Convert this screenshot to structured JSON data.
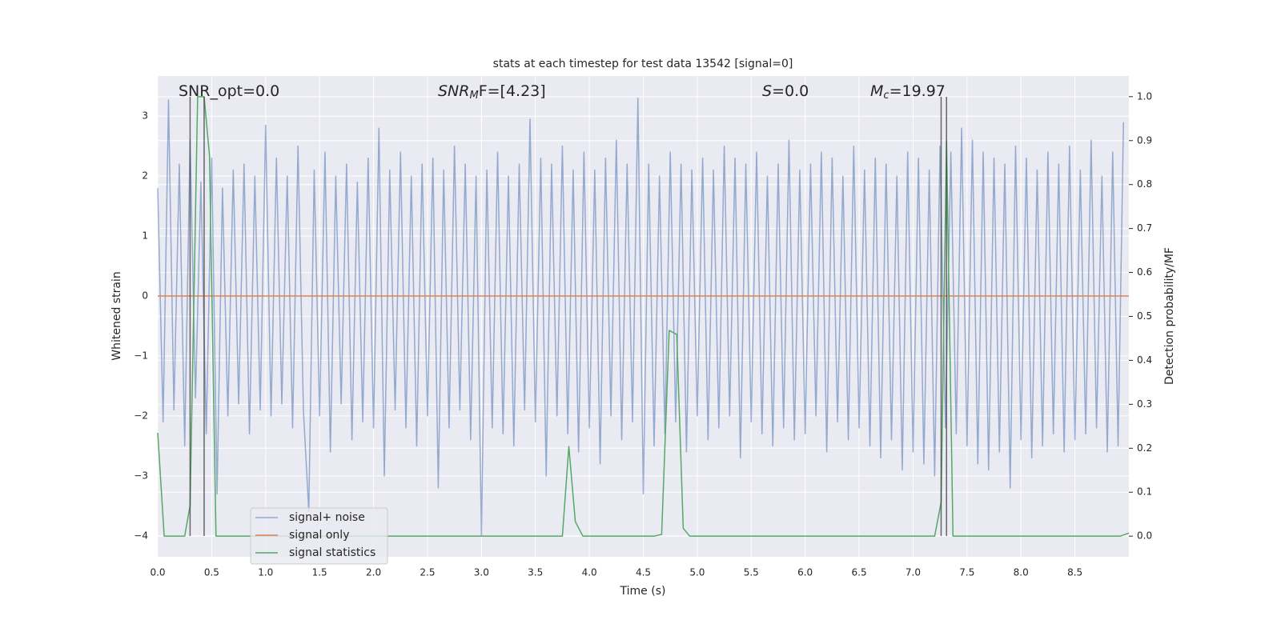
{
  "chart_data": {
    "type": "line",
    "title": "stats at each timestep for test data 13542 [signal=0]",
    "xlabel": "Time (s)",
    "ylabel": "Whitened strain",
    "y2label": "Detection probability/MF",
    "xlim": [
      0,
      9.0
    ],
    "ylim": [
      -4.35,
      3.67
    ],
    "y2lim": [
      -0.047,
      1.047
    ],
    "xticks": [
      {
        "value": 0,
        "label": "0.0"
      },
      0.5,
      {
        "value": 1,
        "label": "1.0"
      },
      1.5,
      {
        "value": 2,
        "label": "2.0"
      },
      2.5,
      {
        "value": 3,
        "label": "3.0"
      },
      3.5,
      {
        "value": 4,
        "label": "4.0"
      },
      4.5,
      {
        "value": 5,
        "label": "5.0"
      },
      5.5,
      {
        "value": 6,
        "label": "6.0"
      },
      6.5,
      {
        "value": 7,
        "label": "7.0"
      },
      7.5,
      {
        "value": 8,
        "label": "8.0"
      },
      8.5
    ],
    "yticks": [
      {
        "value": -4,
        "label": "−4"
      },
      {
        "value": -3,
        "label": "−3"
      },
      {
        "value": -2,
        "label": "−2"
      },
      {
        "value": -1,
        "label": "−1"
      },
      0,
      1,
      2,
      3
    ],
    "y2ticks": [
      {
        "value": 0,
        "label": "0.0"
      },
      0.1,
      0.2,
      0.3,
      0.4,
      0.5,
      0.6,
      0.7,
      0.8,
      0.9,
      {
        "value": 1,
        "label": "1.0"
      }
    ],
    "grid": true,
    "legend": "lower left",
    "annotations": [
      {
        "base": "SNR_opt=0.0"
      },
      {
        "base": "SNR",
        "sub": "M",
        "after": "F=[4.23]"
      },
      {
        "base": "S",
        "after": "=0.0"
      },
      {
        "base": "M",
        "sub": "c",
        "after": "=19.97"
      }
    ],
    "vlines": [
      0.3,
      0.43,
      7.26,
      7.31
    ],
    "series": [
      {
        "name": "signal+ noise",
        "color": "#4c72b0",
        "x": [
          0,
          0.05,
          0.1,
          0.15,
          0.2,
          0.25,
          0.3,
          0.35,
          0.4,
          0.45,
          0.5,
          0.55,
          0.6,
          0.65,
          0.7,
          0.75,
          0.8,
          0.85,
          0.9,
          0.95,
          1,
          1.05,
          1.1,
          1.15,
          1.2,
          1.25,
          1.3,
          1.35,
          1.4,
          1.45,
          1.5,
          1.55,
          1.6,
          1.65,
          1.7,
          1.75,
          1.8,
          1.85,
          1.9,
          1.95,
          2,
          2.05,
          2.1,
          2.15,
          2.2,
          2.25,
          2.3,
          2.35,
          2.4,
          2.45,
          2.5,
          2.55,
          2.6,
          2.65,
          2.7,
          2.75,
          2.8,
          2.85,
          2.9,
          2.95,
          3,
          3.05,
          3.1,
          3.15,
          3.2,
          3.25,
          3.3,
          3.35,
          3.4,
          3.45,
          3.5,
          3.55,
          3.6,
          3.65,
          3.7,
          3.75,
          3.8,
          3.85,
          3.9,
          3.95,
          4,
          4.05,
          4.1,
          4.15,
          4.2,
          4.25,
          4.3,
          4.35,
          4.4,
          4.45,
          4.5,
          4.55,
          4.6,
          4.65,
          4.7,
          4.75,
          4.8,
          4.85,
          4.9,
          4.95,
          5,
          5.05,
          5.1,
          5.15,
          5.2,
          5.25,
          5.3,
          5.35,
          5.4,
          5.45,
          5.5,
          5.55,
          5.6,
          5.65,
          5.7,
          5.75,
          5.8,
          5.85,
          5.9,
          5.95,
          6,
          6.05,
          6.1,
          6.15,
          6.2,
          6.25,
          6.3,
          6.35,
          6.4,
          6.45,
          6.5,
          6.55,
          6.6,
          6.65,
          6.7,
          6.75,
          6.8,
          6.85,
          6.9,
          6.95,
          7,
          7.05,
          7.1,
          7.15,
          7.2,
          7.25,
          7.3,
          7.35,
          7.4,
          7.45,
          7.5,
          7.55,
          7.6,
          7.65,
          7.7,
          7.75,
          7.8,
          7.85,
          7.9,
          7.95,
          8,
          8.05,
          8.1,
          8.15,
          8.2,
          8.25,
          8.3,
          8.35,
          8.4,
          8.45,
          8.5,
          8.55,
          8.6,
          8.65,
          8.7,
          8.75,
          8.8,
          8.85,
          8.9,
          8.95
        ],
        "values": [
          1.8,
          -2.1,
          3.27,
          -1.9,
          2.2,
          -2.5,
          2.6,
          -1.7,
          1.9,
          -2.3,
          2.3,
          -3.3,
          1.8,
          -2.0,
          2.1,
          -1.8,
          2.2,
          -2.3,
          2.0,
          -1.9,
          2.85,
          -2.0,
          2.3,
          -1.8,
          2.0,
          -2.2,
          2.5,
          -1.9,
          -3.6,
          2.1,
          -2.0,
          2.4,
          -2.6,
          2.0,
          -1.8,
          2.2,
          -2.4,
          1.9,
          -2.1,
          2.3,
          -2.2,
          2.8,
          -3.0,
          2.1,
          -1.9,
          2.4,
          -2.2,
          2.0,
          -2.5,
          2.2,
          -2.0,
          2.3,
          -3.2,
          2.1,
          -2.2,
          2.5,
          -1.9,
          2.2,
          -2.4,
          2.0,
          -4.0,
          2.1,
          -2.2,
          2.4,
          -2.3,
          2.0,
          -2.5,
          2.2,
          -1.9,
          2.95,
          -2.1,
          2.3,
          -3.0,
          2.2,
          -2.0,
          2.5,
          -2.3,
          2.1,
          -2.6,
          2.4,
          -2.2,
          2.1,
          -2.8,
          2.3,
          -2.0,
          2.6,
          -2.4,
          2.2,
          -2.1,
          3.3,
          -3.3,
          2.2,
          -2.5,
          2.0,
          -2.3,
          2.4,
          -2.1,
          2.2,
          -2.6,
          2.1,
          -2.0,
          2.3,
          -2.4,
          2.1,
          -2.2,
          2.5,
          -2.0,
          2.3,
          -2.7,
          2.2,
          -2.1,
          2.4,
          -2.3,
          2.0,
          -2.5,
          2.2,
          -2.2,
          2.6,
          -2.4,
          2.1,
          -2.3,
          2.2,
          -2.0,
          2.4,
          -2.6,
          2.3,
          -2.1,
          2.0,
          -2.4,
          2.5,
          -2.2,
          2.1,
          -2.5,
          2.3,
          -2.7,
          2.2,
          -2.4,
          2.0,
          -2.9,
          2.4,
          -2.6,
          2.3,
          -2.8,
          2.1,
          -3.0,
          2.5,
          -2.2,
          2.4,
          -2.3,
          2.8,
          -2.5,
          2.6,
          -2.8,
          2.4,
          -2.9,
          2.3,
          -2.6,
          2.2,
          -3.2,
          2.5,
          -2.4,
          2.3,
          -2.7,
          2.1,
          -2.5,
          2.4,
          -2.3,
          2.2,
          -2.6,
          2.5,
          -2.4,
          2.1,
          -2.3,
          2.6,
          -2.2,
          2.0,
          -2.6,
          2.4,
          -2.5,
          2.9
        ]
      },
      {
        "name": "signal only",
        "color": "#dd8452",
        "x": [
          0,
          9.0
        ],
        "values": [
          0,
          0
        ]
      },
      {
        "name": "signal statistics",
        "color": "#55a868",
        "axis": "y2",
        "x": [
          0,
          0.06,
          0.25,
          0.3,
          0.37,
          0.43,
          0.48,
          0.54,
          3.75,
          3.81,
          3.87,
          3.94,
          4.6,
          4.67,
          4.74,
          4.81,
          4.87,
          4.93,
          7.2,
          7.26,
          7.31,
          7.37,
          8.92,
          9.0
        ],
        "values": [
          0.235,
          0,
          0,
          0.07,
          1.0,
          1.0,
          0.865,
          0,
          0,
          0.204,
          0.033,
          0,
          0,
          0.004,
          0.468,
          0.459,
          0.018,
          0,
          0,
          0.077,
          0.9,
          0,
          0,
          0.007
        ]
      }
    ]
  }
}
